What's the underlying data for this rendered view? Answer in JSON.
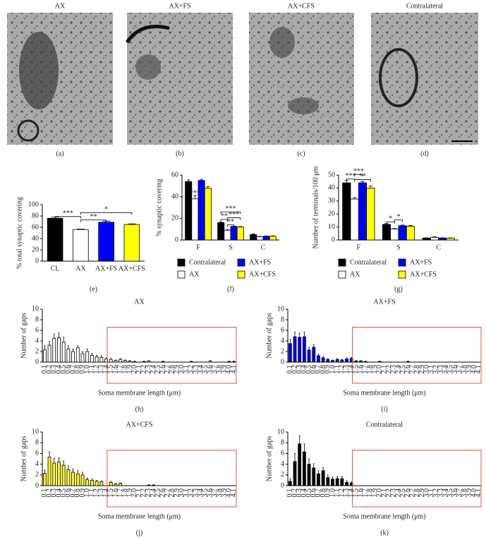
{
  "panels": {
    "titles": [
      "AX",
      "AX+FS",
      "AX+CFS",
      "Contralateral"
    ],
    "labels": [
      "(a)",
      "(b)",
      "(c)",
      "(d)"
    ]
  },
  "chart_data": [
    {
      "type": "bar",
      "label": "(e)",
      "ylabel": "% total synaptic covering",
      "categories": [
        "CL",
        "AX",
        "AX+FS",
        "AX+CFS"
      ],
      "values": [
        76,
        56,
        69,
        65
      ],
      "errors": [
        2,
        0.8,
        2,
        1
      ],
      "colors": [
        "#000000",
        "#ffffff",
        "#0000ff",
        "#ffff00"
      ],
      "ylim": [
        0,
        100
      ],
      "yticks": [
        0,
        20,
        40,
        60,
        80,
        100
      ],
      "annotations": [
        "***",
        "**",
        "*"
      ]
    },
    {
      "type": "bar",
      "label": "(f)",
      "ylabel": "% synaptic covering",
      "categories": [
        "F",
        "S",
        "C"
      ],
      "series": [
        {
          "name": "Contralateral",
          "color": "#000000",
          "values": [
            54,
            16,
            5
          ],
          "errors": [
            1.5,
            0.5,
            0.5
          ]
        },
        {
          "name": "AX",
          "color": "#ffffff",
          "values": [
            38,
            9,
            3
          ],
          "errors": [
            3,
            0.8,
            0.3
          ]
        },
        {
          "name": "AX+FS",
          "color": "#0000ff",
          "values": [
            55,
            12.5,
            3.5
          ],
          "errors": [
            1,
            0.3,
            0.2
          ]
        },
        {
          "name": "AX+CFS",
          "color": "#ffff00",
          "values": [
            48,
            12,
            3.5
          ],
          "errors": [
            1.5,
            0.4,
            0.3
          ]
        }
      ],
      "ylim": [
        0,
        60
      ],
      "yticks": [
        0,
        20,
        40,
        60
      ],
      "annotations": [
        "***",
        "**",
        "***",
        "**",
        "***"
      ]
    },
    {
      "type": "bar",
      "label": "(g)",
      "ylabel": "Number of terminals/100 μm",
      "categories": [
        "F",
        "S",
        "C"
      ],
      "series": [
        {
          "name": "Contralateral",
          "color": "#000000",
          "values": [
            44,
            12,
            1.5
          ],
          "errors": [
            2,
            0.6,
            0.2
          ]
        },
        {
          "name": "AX",
          "color": "#ffffff",
          "values": [
            31.5,
            8.5,
            2
          ],
          "errors": [
            1,
            0.4,
            0.4
          ]
        },
        {
          "name": "AX+FS",
          "color": "#0000ff",
          "values": [
            44,
            11,
            1.5
          ],
          "errors": [
            1,
            0.5,
            0.2
          ]
        },
        {
          "name": "AX+CFS",
          "color": "#ffff00",
          "values": [
            40,
            10.5,
            1.5
          ],
          "errors": [
            1.5,
            0.6,
            0.2
          ]
        }
      ],
      "ylim": [
        0,
        50
      ],
      "yticks": [
        0,
        10,
        20,
        30,
        40,
        50
      ],
      "annotations": [
        "***",
        "***",
        "**",
        "*",
        "*"
      ]
    },
    {
      "type": "bar",
      "title": "AX",
      "label": "(h)",
      "ylabel": "Number of gaps",
      "xlabel": "Soma membrane length (μm)",
      "color": "#ffffff",
      "categories": [
        "0.1",
        "0.2",
        "0.3",
        "0.4",
        "0.5",
        "0.6",
        "0.7",
        "0.8",
        "0.9",
        "1.0",
        "1.1",
        "1.2",
        "1.3",
        "1.4",
        "1.5",
        "1.6",
        "1.7",
        "1.8",
        "1.9",
        "2.0",
        "2.1",
        "2.2",
        "2.3",
        "2.4",
        "2.5",
        "2.6",
        "2.7",
        "2.8",
        "2.9",
        "3.0",
        "3.1",
        "3.2",
        "3.3",
        "3.4",
        "3.5",
        "3.6",
        "3.7",
        "3.8",
        "3.9",
        "4.0",
        "4.1"
      ],
      "values": [
        2.3,
        3.2,
        4.5,
        4.6,
        3.8,
        2.5,
        2.0,
        2.7,
        1.6,
        2.0,
        1.3,
        1.0,
        0.9,
        0.6,
        0.5,
        0.3,
        0.5,
        0.3,
        0.2,
        0.1,
        0,
        0.1,
        0.2,
        0,
        0,
        0.1,
        0,
        0,
        0,
        0,
        0,
        0.1,
        0,
        0,
        0,
        0.2,
        0,
        0,
        0,
        0.1,
        0.1
      ],
      "errors": [
        0.8,
        0.7,
        0.8,
        0.9,
        0.9,
        0.6,
        0.5,
        0.4,
        0.4,
        0.5,
        0.4,
        0.3,
        0.3,
        0.2,
        0.2,
        0.1,
        0.2,
        0.1,
        0.1,
        0.1,
        0,
        0.1,
        0.1,
        0,
        0,
        0.1,
        0,
        0,
        0,
        0,
        0,
        0.1,
        0,
        0,
        0,
        0.1,
        0,
        0,
        0,
        0.1,
        0.1
      ],
      "ylim": [
        0,
        10
      ],
      "yticks": [
        0,
        2,
        4,
        6,
        8,
        10
      ]
    },
    {
      "type": "bar",
      "title": "AX+FS",
      "label": "(i)",
      "ylabel": "Number of gaps",
      "xlabel": "Soma membrane length (μm)",
      "color": "#0000ff",
      "categories": [
        "0.1",
        "0.2",
        "0.3",
        "0.4",
        "0.5",
        "0.6",
        "0.7",
        "0.8",
        "0.9",
        "1.0",
        "1.1",
        "1.2",
        "1.3",
        "1.4",
        "1.5",
        "1.6",
        "1.7",
        "1.8",
        "1.9",
        "2.0",
        "2.1",
        "2.2",
        "2.3",
        "2.4",
        "2.5",
        "2.6",
        "2.7",
        "2.8",
        "2.9",
        "3.0",
        "3.1",
        "3.2",
        "3.3",
        "3.4",
        "3.5",
        "3.6",
        "3.7",
        "3.8",
        "3.9",
        "4.0",
        "4.1"
      ],
      "values": [
        3.5,
        4.8,
        4.7,
        4.8,
        2.3,
        2.8,
        1.2,
        0.8,
        0.5,
        0.3,
        0.5,
        0.4,
        0.6,
        0.7,
        0.2,
        0.2,
        0.1,
        0,
        0,
        0.1,
        0,
        0,
        0,
        0,
        0,
        0.1,
        0,
        0,
        0,
        0,
        0,
        0,
        0,
        0,
        0,
        0,
        0,
        0,
        0,
        0,
        0
      ],
      "errors": [
        0.8,
        0.9,
        0.8,
        0.9,
        0.5,
        0.5,
        0.3,
        0.2,
        0.2,
        0.1,
        0.2,
        0.1,
        0.2,
        0.2,
        0.1,
        0.1,
        0.1,
        0,
        0,
        0.1,
        0,
        0,
        0,
        0,
        0,
        0.1,
        0,
        0,
        0,
        0,
        0,
        0,
        0,
        0,
        0,
        0,
        0,
        0,
        0,
        0,
        0
      ],
      "ylim": [
        0,
        10
      ],
      "yticks": [
        0,
        2,
        4,
        6,
        8,
        10
      ]
    },
    {
      "type": "bar",
      "title": "AX+CFS",
      "label": "(j)",
      "ylabel": "Number of gaps",
      "xlabel": "Soma membrane length (μm)",
      "color": "#ffff00",
      "categories": [
        "0.1",
        "0.2",
        "0.3",
        "0.4",
        "0.5",
        "0.6",
        "0.7",
        "0.8",
        "0.9",
        "1.0",
        "1.1",
        "1.2",
        "1.3",
        "1.4",
        "1.5",
        "1.6",
        "1.7",
        "1.8",
        "1.9",
        "2.0",
        "2.1",
        "2.2",
        "2.3",
        "2.4",
        "2.5",
        "2.6",
        "2.7",
        "2.8",
        "2.9",
        "3.0",
        "3.1",
        "3.2",
        "3.3",
        "3.4",
        "3.5",
        "3.6",
        "3.7",
        "3.8",
        "3.9",
        "4.0",
        "4.1"
      ],
      "values": [
        2.3,
        5.3,
        4.2,
        4.4,
        3.8,
        3.0,
        2.5,
        2.2,
        2.0,
        1.1,
        1.0,
        0.8,
        0.7,
        0,
        0.6,
        0.3,
        0.4,
        0,
        0,
        0,
        0,
        0,
        0.1,
        0.1,
        0,
        0,
        0,
        0,
        0,
        0,
        0,
        0,
        0,
        0,
        0,
        0,
        0,
        0,
        0,
        0,
        0
      ],
      "errors": [
        0.6,
        1.0,
        0.9,
        0.8,
        0.8,
        0.7,
        0.6,
        0.6,
        0.5,
        0.3,
        0.3,
        0.2,
        0.2,
        0,
        0.2,
        0.1,
        0.1,
        0,
        0,
        0,
        0,
        0,
        0.1,
        0.1,
        0,
        0,
        0,
        0,
        0,
        0,
        0,
        0,
        0,
        0,
        0,
        0,
        0,
        0,
        0,
        0,
        0
      ],
      "ylim": [
        0,
        10
      ],
      "yticks": [
        0,
        2,
        4,
        6,
        8,
        10
      ]
    },
    {
      "type": "bar",
      "title": "Contralateral",
      "label": "(k)",
      "ylabel": "Number of gaps",
      "xlabel": "Soma membrane length (μm)",
      "color": "#000000",
      "categories": [
        "0.1",
        "0.2",
        "0.3",
        "0.4",
        "0.5",
        "0.6",
        "0.7",
        "0.8",
        "0.9",
        "1.0",
        "1.1",
        "1.2",
        "1.3",
        "1.4",
        "1.5",
        "1.6",
        "1.7",
        "1.8",
        "1.9",
        "2.0",
        "2.1",
        "2.2",
        "2.3",
        "2.4",
        "2.5",
        "2.6",
        "2.7",
        "2.8",
        "2.9",
        "3.0",
        "3.1",
        "3.2",
        "3.3",
        "3.4",
        "3.5",
        "3.6",
        "3.7",
        "3.8",
        "3.9",
        "4.0",
        "4.1"
      ],
      "values": [
        0.8,
        4.5,
        7.8,
        6.3,
        4.0,
        3.3,
        2.2,
        2.8,
        1.5,
        1.2,
        1.3,
        1.3,
        0.6,
        0.5,
        0,
        0,
        0,
        0,
        0,
        0,
        0,
        0,
        0,
        0,
        0,
        0,
        0,
        0,
        0,
        0,
        0,
        0,
        0,
        0,
        0,
        0,
        0,
        0,
        0,
        0,
        0
      ],
      "errors": [
        0.5,
        1.5,
        1.5,
        1.5,
        1.0,
        0.8,
        0.6,
        0.6,
        0.5,
        0.4,
        0.4,
        0.4,
        0.3,
        0.2,
        0,
        0,
        0,
        0,
        0,
        0,
        0,
        0,
        0,
        0,
        0,
        0,
        0,
        0,
        0,
        0,
        0,
        0,
        0,
        0,
        0,
        0,
        0,
        0,
        0,
        0,
        0
      ],
      "ylim": [
        0,
        10
      ],
      "yticks": [
        0,
        2,
        4,
        6,
        8,
        10
      ]
    }
  ]
}
